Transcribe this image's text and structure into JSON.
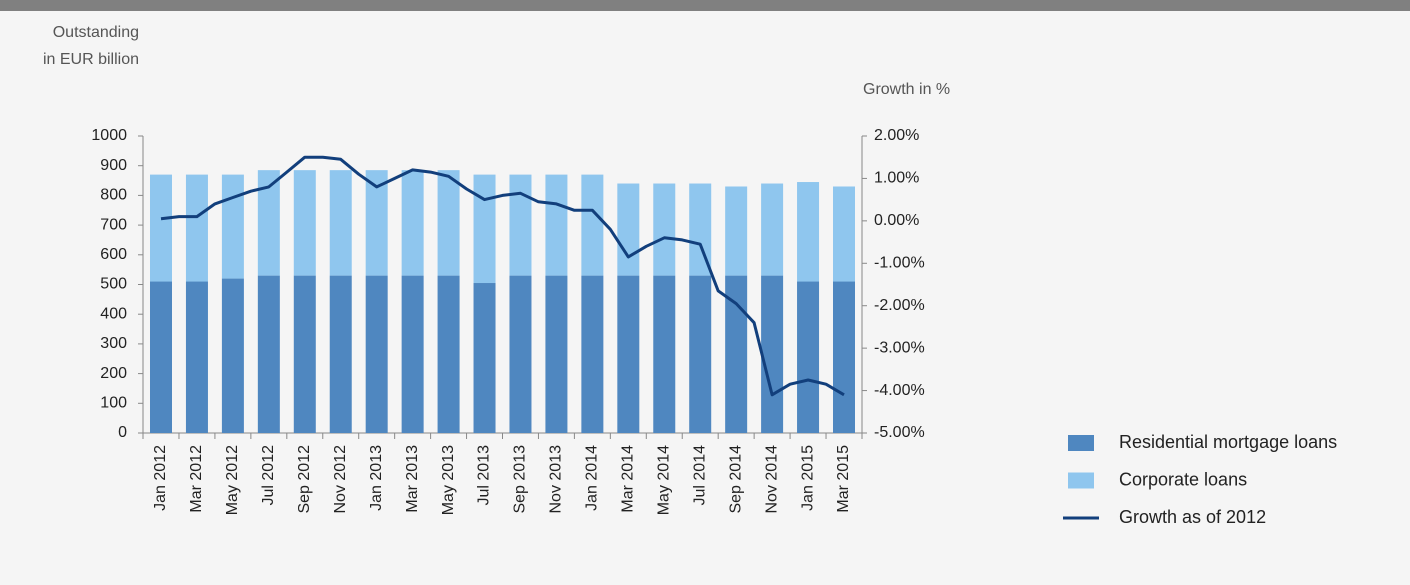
{
  "chart_data": {
    "type": "bar",
    "ylabel": [
      "Outstanding",
      "in EUR billion"
    ],
    "y2label": "Growth in %",
    "categories": [
      "Jan 2012",
      null,
      "Mar 2012",
      null,
      "May 2012",
      null,
      "Jul 2012",
      null,
      "Sep 2012",
      null,
      "Nov 2012",
      null,
      "Jan 2013",
      null,
      "Mar 2013",
      null,
      "May 2013",
      null,
      "Jul 2013",
      null,
      "Sep 2013",
      null,
      "Nov 2013",
      null,
      "Jan 2014",
      null,
      "Mar 2014",
      null,
      "May 2014",
      null,
      "Jul 2014",
      null,
      "Sep 2014",
      null,
      "Nov 2014",
      null,
      "Jan 2015",
      null,
      "Mar 2015"
    ],
    "stacked": true,
    "series": [
      {
        "name": "Residential mortgage loans",
        "color": "#4f87c0",
        "values": [
          510,
          null,
          510,
          null,
          520,
          null,
          530,
          null,
          530,
          null,
          530,
          null,
          530,
          null,
          530,
          null,
          530,
          null,
          505,
          null,
          530,
          null,
          530,
          null,
          530,
          null,
          530,
          null,
          530,
          null,
          530,
          null,
          530,
          null,
          530,
          null,
          510,
          null,
          510
        ]
      },
      {
        "name": "Corporate loans",
        "color": "#8fc6ee",
        "values": [
          360,
          null,
          360,
          null,
          350,
          null,
          355,
          null,
          355,
          null,
          355,
          null,
          355,
          null,
          355,
          null,
          355,
          null,
          365,
          null,
          340,
          null,
          340,
          null,
          340,
          null,
          310,
          null,
          310,
          null,
          310,
          null,
          300,
          null,
          310,
          null,
          335,
          null,
          320
        ]
      },
      {
        "name": "Growth as of 2012",
        "type": "line",
        "axis": "y2",
        "color": "#123f7c",
        "values": [
          0.05,
          0.1,
          0.1,
          0.4,
          0.55,
          0.7,
          0.8,
          1.15,
          1.5,
          1.5,
          1.45,
          1.1,
          0.8,
          1.0,
          1.2,
          1.15,
          1.05,
          0.75,
          0.5,
          0.6,
          0.65,
          0.45,
          0.4,
          0.25,
          0.25,
          -0.2,
          -0.85,
          -0.6,
          -0.4,
          -0.45,
          -0.55,
          -1.65,
          -1.95,
          -2.4,
          -4.1,
          -3.85,
          -3.75,
          -3.85,
          -4.1
        ]
      }
    ],
    "ylim": [
      0,
      1000
    ],
    "yticks": [
      0,
      100,
      200,
      300,
      400,
      500,
      600,
      700,
      800,
      900,
      1000
    ],
    "y2lim": [
      -5,
      2
    ],
    "y2ticks": [
      {
        "value": -5,
        "label": "-5.00%"
      },
      {
        "value": -4,
        "label": "-4.00%"
      },
      {
        "value": -3,
        "label": "-3.00%"
      },
      {
        "value": -2,
        "label": "-2.00%"
      },
      {
        "value": -1,
        "label": "-1.00%"
      },
      {
        "value": 0,
        "label": "0.00%"
      },
      {
        "value": 1,
        "label": "1.00%"
      },
      {
        "value": 2,
        "label": "2.00%"
      }
    ],
    "grid": false,
    "legend": "lower right"
  }
}
